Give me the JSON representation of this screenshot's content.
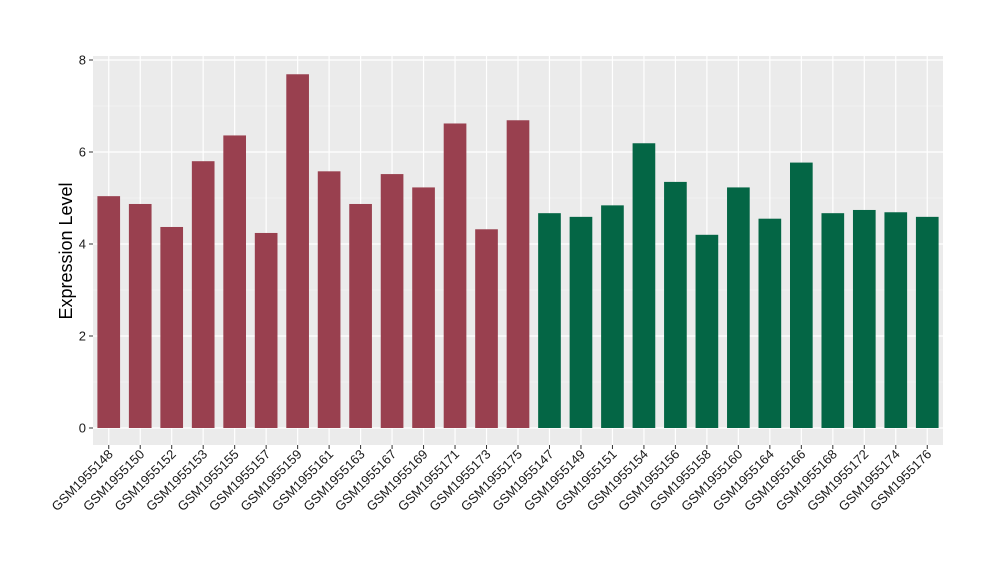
{
  "chart_data": {
    "type": "bar",
    "title": "",
    "xlabel": "",
    "ylabel": "Expression Level",
    "ylim": [
      0,
      8.1
    ],
    "yticks": [
      0,
      2,
      4,
      6,
      8
    ],
    "grid": true,
    "background_color": "#EBEBEB",
    "group_colors": [
      "#99404F",
      "#046645"
    ],
    "categories": [
      "GSM1955148",
      "GSM1955150",
      "GSM1955152",
      "GSM1955153",
      "GSM1955155",
      "GSM1955157",
      "GSM1955159",
      "GSM1955161",
      "GSM1955163",
      "GSM1955167",
      "GSM1955169",
      "GSM1955171",
      "GSM1955173",
      "GSM1955175",
      "GSM1955147",
      "GSM1955149",
      "GSM1955151",
      "GSM1955154",
      "GSM1955156",
      "GSM1955158",
      "GSM1955160",
      "GSM1955164",
      "GSM1955166",
      "GSM1955168",
      "GSM1955172",
      "GSM1955174",
      "GSM1955176"
    ],
    "values": [
      5.04,
      4.87,
      4.37,
      5.8,
      6.36,
      4.24,
      7.69,
      5.58,
      4.87,
      5.52,
      5.23,
      6.62,
      4.32,
      6.69,
      4.67,
      4.59,
      4.84,
      6.19,
      5.35,
      4.2,
      5.23,
      4.55,
      5.77,
      4.67,
      4.74,
      4.69,
      4.59
    ],
    "groups": [
      0,
      0,
      0,
      0,
      0,
      0,
      0,
      0,
      0,
      0,
      0,
      0,
      0,
      0,
      1,
      1,
      1,
      1,
      1,
      1,
      1,
      1,
      1,
      1,
      1,
      1,
      1
    ]
  }
}
